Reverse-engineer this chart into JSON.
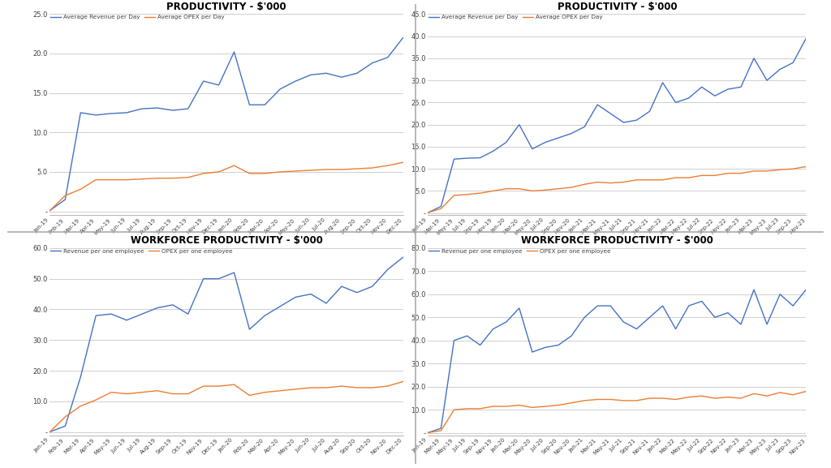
{
  "chart_bg": "#ffffff",
  "plot_bg": "#ffffff",
  "grid_color": "#c8c8c8",
  "line_blue": "#4472C4",
  "line_orange": "#ED7D31",
  "title_color": "#000000",
  "tick_color": "#404040",
  "top_left": {
    "title": "PRODUCTIVITY - $'000",
    "legend1": "Average Revenue per Day",
    "legend2": "Average OPEX per Day",
    "ylim": [
      -0.5,
      25
    ],
    "yticks": [
      0,
      5,
      10,
      15,
      20,
      25
    ],
    "ytick_labels": [
      "-",
      "5.0",
      "10.0",
      "15.0",
      "20.0",
      "25.0"
    ],
    "x_labels": [
      "Jan-19",
      "Feb-19",
      "Mar-19",
      "Apr-19",
      "May-19",
      "Jun-19",
      "Jul-19",
      "Aug-19",
      "Sep-19",
      "Oct-19",
      "Nov-19",
      "Dec-19",
      "Jan-20",
      "Feb-20",
      "Mar-20",
      "Apr-20",
      "May-20",
      "Jun-20",
      "Jul-20",
      "Aug-20",
      "Sep-20",
      "Oct-20",
      "Nov-20",
      "Dec-20"
    ],
    "revenue": [
      0.1,
      1.5,
      12.5,
      12.2,
      12.4,
      12.5,
      13.0,
      13.1,
      12.8,
      13.0,
      16.5,
      16.0,
      20.2,
      13.5,
      13.5,
      15.5,
      16.5,
      17.3,
      17.5,
      17.0,
      17.5,
      18.8,
      19.5,
      22.0
    ],
    "opex": [
      0.1,
      2.0,
      2.8,
      4.0,
      4.0,
      4.0,
      4.1,
      4.2,
      4.2,
      4.3,
      4.8,
      5.0,
      5.8,
      4.8,
      4.8,
      5.0,
      5.1,
      5.2,
      5.3,
      5.3,
      5.4,
      5.5,
      5.8,
      6.2
    ]
  },
  "top_right": {
    "title": "PRODUCTIVITY - $'000",
    "legend1": "Average Revenue per Day",
    "legend2": "Average OPEX per Day",
    "ylim": [
      -0.5,
      45
    ],
    "yticks": [
      0,
      5,
      10,
      15,
      20,
      25,
      30,
      35,
      40,
      45
    ],
    "ytick_labels": [
      "-",
      "5.0",
      "10.0",
      "15.0",
      "20.0",
      "25.0",
      "30.0",
      "35.0",
      "40.0",
      "45.0"
    ],
    "x_labels": [
      "Jan-19",
      "Mar-19",
      "May-19",
      "Jul-19",
      "Sep-19",
      "Nov-19",
      "Jan-20",
      "Mar-20",
      "May-20",
      "Jul-20",
      "Sep-20",
      "Nov-20",
      "Jan-21",
      "Mar-21",
      "May-21",
      "Jul-21",
      "Sep-21",
      "Nov-21",
      "Jan-22",
      "Mar-22",
      "May-22",
      "Jul-22",
      "Sep-22",
      "Nov-22",
      "Jan-23",
      "Mar-23",
      "May-23",
      "Jul-23",
      "Sep-23",
      "Nov-23"
    ],
    "revenue": [
      0.1,
      1.5,
      12.2,
      12.4,
      12.5,
      14.0,
      16.0,
      20.0,
      14.5,
      16.0,
      17.0,
      18.0,
      19.5,
      24.5,
      22.5,
      20.5,
      21.0,
      23.0,
      29.5,
      25.0,
      26.0,
      28.5,
      26.5,
      28.0,
      28.5,
      35.0,
      30.0,
      32.5,
      34.0,
      39.5
    ],
    "opex": [
      0.1,
      1.0,
      4.0,
      4.2,
      4.5,
      5.0,
      5.5,
      5.5,
      5.0,
      5.2,
      5.5,
      5.8,
      6.5,
      7.0,
      6.8,
      7.0,
      7.5,
      7.5,
      7.5,
      8.0,
      8.0,
      8.5,
      8.5,
      9.0,
      9.0,
      9.5,
      9.5,
      9.8,
      10.0,
      10.5
    ]
  },
  "bot_left": {
    "title": "WORKFORCE PRODUCTIVITY - $'000",
    "legend1": "Revenue per one employee",
    "legend2": "OPEX per one employee",
    "ylim": [
      -1,
      60
    ],
    "yticks": [
      0,
      10,
      20,
      30,
      40,
      50,
      60
    ],
    "ytick_labels": [
      "-",
      "10.0",
      "20.0",
      "30.0",
      "40.0",
      "50.0",
      "60.0"
    ],
    "x_labels": [
      "Jan-19",
      "Feb-19",
      "Mar-19",
      "Apr-19",
      "May-19",
      "Jun-19",
      "Jul-19",
      "Aug-19",
      "Sep-19",
      "Oct-19",
      "Nov-19",
      "Dec-19",
      "Jan-20",
      "Feb-20",
      "Mar-20",
      "Apr-20",
      "May-20",
      "Jun-20",
      "Jul-20",
      "Aug-20",
      "Sep-20",
      "Oct-20",
      "Nov-20",
      "Dec-20"
    ],
    "revenue": [
      0.1,
      2.0,
      18.0,
      38.0,
      38.5,
      36.5,
      38.5,
      40.5,
      41.5,
      38.5,
      50.0,
      50.0,
      52.0,
      33.5,
      38.0,
      41.0,
      44.0,
      45.0,
      42.0,
      47.5,
      45.5,
      47.5,
      53.0,
      57.0
    ],
    "opex": [
      0.1,
      5.0,
      8.5,
      10.5,
      13.0,
      12.5,
      13.0,
      13.5,
      12.5,
      12.5,
      15.0,
      15.0,
      15.5,
      12.0,
      13.0,
      13.5,
      14.0,
      14.5,
      14.5,
      15.0,
      14.5,
      14.5,
      15.0,
      16.5
    ]
  },
  "bot_right": {
    "title": "WORKFORCE PRODUCTIVITY - $'000",
    "legend1": "Revenue per one employee",
    "legend2": "OPEX per one employee",
    "ylim": [
      -1,
      80
    ],
    "yticks": [
      0,
      10,
      20,
      30,
      40,
      50,
      60,
      70,
      80
    ],
    "ytick_labels": [
      "-",
      "10.0",
      "20.0",
      "30.0",
      "40.0",
      "50.0",
      "60.0",
      "70.0",
      "80.0"
    ],
    "x_labels": [
      "Jan-19",
      "Mar-19",
      "May-19",
      "Jul-19",
      "Sep-19",
      "Nov-19",
      "Jan-20",
      "Mar-20",
      "May-20",
      "Jul-20",
      "Sep-20",
      "Nov-20",
      "Jan-21",
      "Mar-21",
      "May-21",
      "Jul-21",
      "Sep-21",
      "Nov-21",
      "Jan-22",
      "Mar-22",
      "May-22",
      "Jul-22",
      "Sep-22",
      "Nov-22",
      "Jan-23",
      "Mar-23",
      "May-23",
      "Jul-23",
      "Sep-23",
      "Nov-23"
    ],
    "revenue": [
      0.1,
      2.0,
      40.0,
      42.0,
      38.0,
      45.0,
      48.0,
      54.0,
      35.0,
      37.0,
      38.0,
      42.0,
      50.0,
      55.0,
      55.0,
      48.0,
      45.0,
      50.0,
      55.0,
      45.0,
      55.0,
      57.0,
      50.0,
      52.0,
      47.0,
      62.0,
      47.0,
      60.0,
      55.0,
      62.0
    ],
    "opex": [
      0.1,
      1.0,
      10.0,
      10.5,
      10.5,
      11.5,
      11.5,
      12.0,
      11.0,
      11.5,
      12.0,
      13.0,
      14.0,
      14.5,
      14.5,
      14.0,
      14.0,
      15.0,
      15.0,
      14.5,
      15.5,
      16.0,
      15.0,
      15.5,
      15.0,
      17.0,
      16.0,
      17.5,
      16.5,
      18.0
    ]
  }
}
